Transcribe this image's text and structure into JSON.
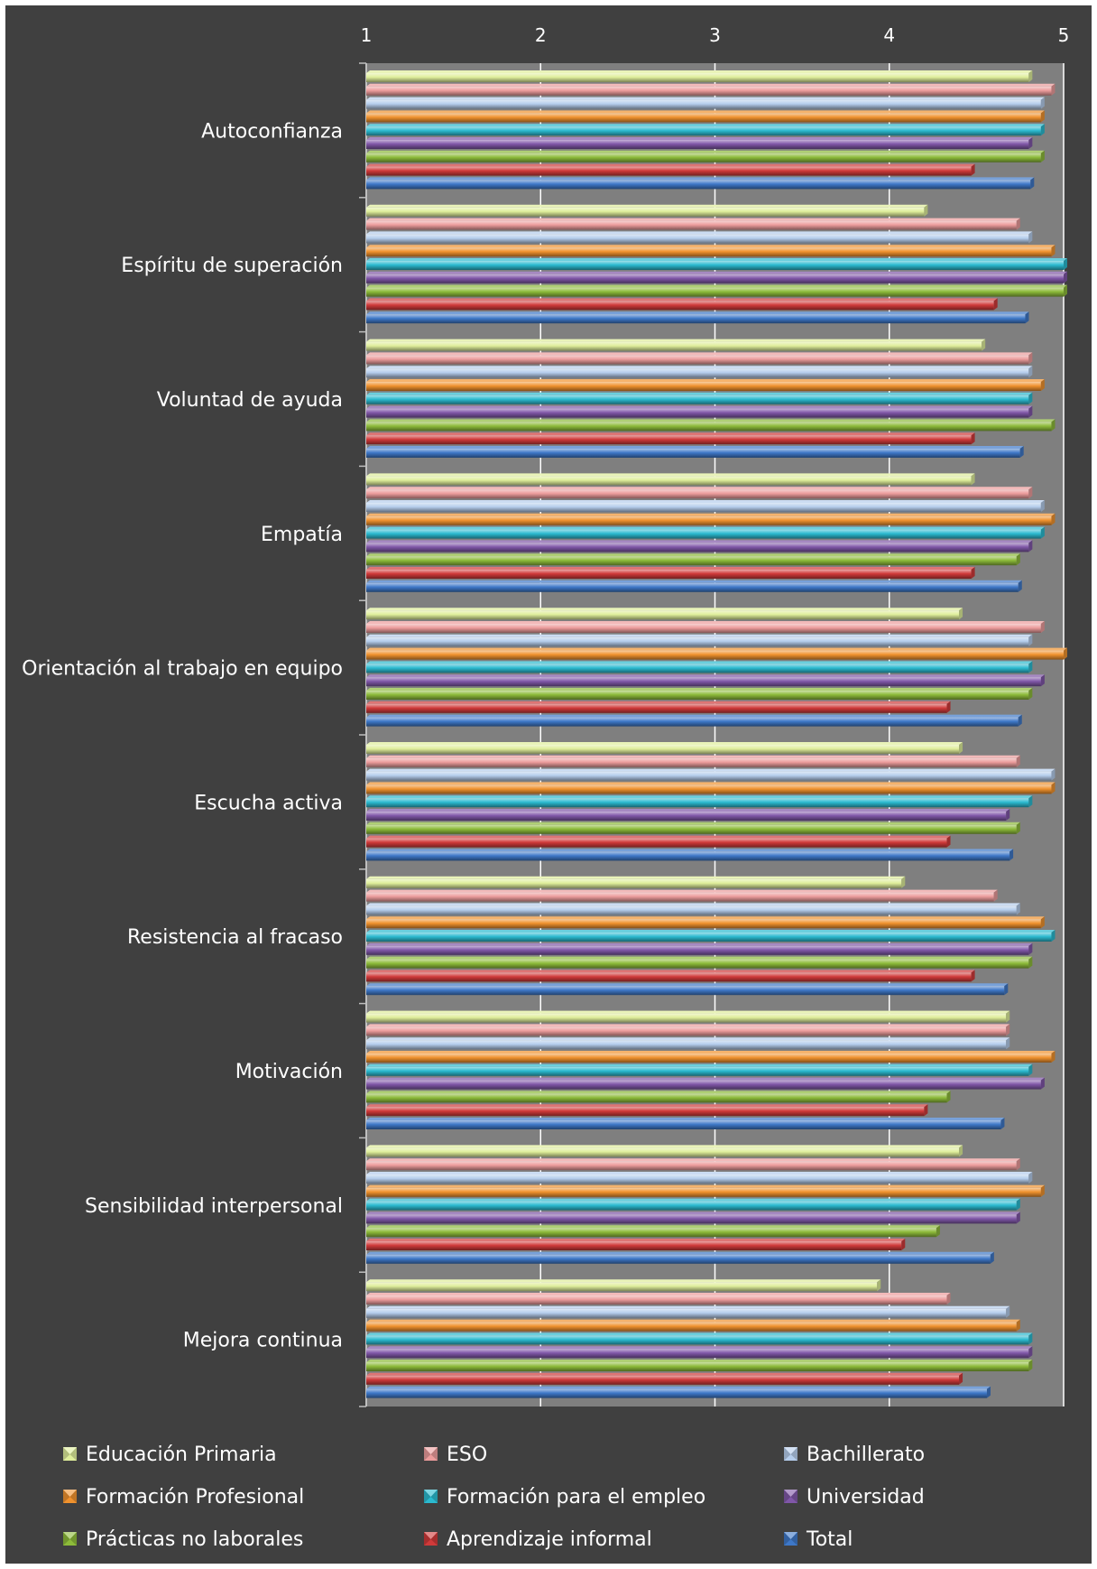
{
  "chart_data": {
    "type": "bar",
    "orientation": "horizontal",
    "bar_style": "3d-cylinder",
    "colors": {
      "background": "#404040",
      "plot_area": "#7f7f7f",
      "gridline": "#ffffff",
      "text": "#ffffff"
    },
    "xlim": [
      1,
      5
    ],
    "x_ticks": [
      "1",
      "2",
      "3",
      "4",
      "5"
    ],
    "grid": true,
    "legend_position": "bottom",
    "categories": [
      "Autoconfianza",
      "Espíritu de superación",
      "Voluntad de ayuda",
      "Empatía",
      "Orientación al trabajo en equipo",
      "Escucha activa",
      "Resistencia al fracaso",
      "Motivación",
      "Sensibilidad interpersonal",
      "Mejora continua"
    ],
    "series": [
      {
        "name": "Educación Primaria",
        "color": "#dfee9b",
        "values": [
          4.8,
          4.2,
          4.53,
          4.47,
          4.4,
          4.4,
          4.07,
          4.67,
          4.4,
          3.93
        ]
      },
      {
        "name": "ESO",
        "color": "#ec9c9c",
        "values": [
          4.93,
          4.73,
          4.8,
          4.8,
          4.87,
          4.73,
          4.6,
          4.67,
          4.73,
          4.33
        ]
      },
      {
        "name": "Bachillerato",
        "color": "#b5cdec",
        "values": [
          4.87,
          4.8,
          4.8,
          4.87,
          4.8,
          4.93,
          4.73,
          4.67,
          4.8,
          4.67
        ]
      },
      {
        "name": "Formación Profesional",
        "color": "#f0922e",
        "values": [
          4.87,
          4.93,
          4.87,
          4.93,
          5.0,
          4.93,
          4.87,
          4.93,
          4.87,
          4.73
        ]
      },
      {
        "name": "Formación para el empleo",
        "color": "#2bbad0",
        "values": [
          4.87,
          5.0,
          4.8,
          4.87,
          4.8,
          4.8,
          4.93,
          4.8,
          4.73,
          4.8
        ]
      },
      {
        "name": "Universidad",
        "color": "#8057a8",
        "values": [
          4.8,
          5.0,
          4.8,
          4.8,
          4.87,
          4.67,
          4.8,
          4.87,
          4.73,
          4.8
        ]
      },
      {
        "name": "Prácticas no laborales",
        "color": "#8dbb3a",
        "values": [
          4.87,
          5.0,
          4.93,
          4.73,
          4.8,
          4.73,
          4.8,
          4.33,
          4.27,
          4.8
        ]
      },
      {
        "name": "Aprendizaje informal",
        "color": "#d03a3a",
        "values": [
          4.47,
          4.6,
          4.47,
          4.47,
          4.33,
          4.33,
          4.47,
          4.2,
          4.07,
          4.4
        ]
      },
      {
        "name": "Total",
        "color": "#3e78c8",
        "values": [
          4.81,
          4.78,
          4.75,
          4.74,
          4.74,
          4.69,
          4.66,
          4.64,
          4.58,
          4.56
        ]
      }
    ]
  }
}
